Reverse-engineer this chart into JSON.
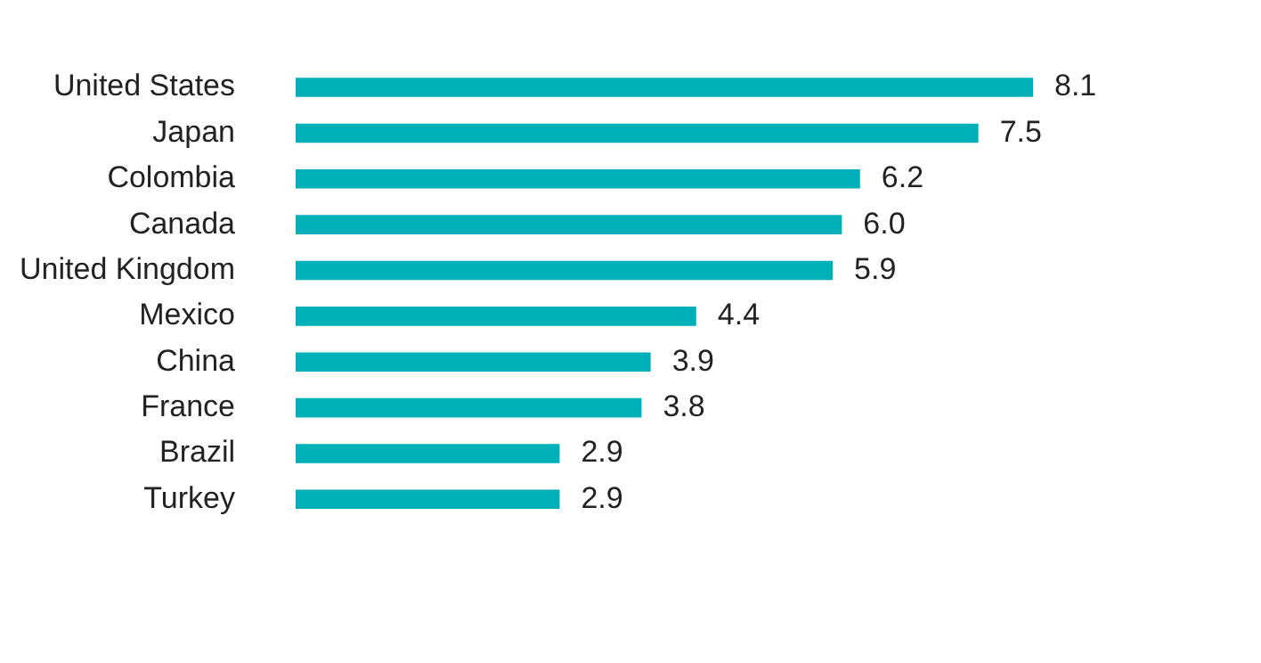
{
  "chart_data": {
    "type": "bar",
    "orientation": "horizontal",
    "categories": [
      "United States",
      "Japan",
      "Colombia",
      "Canada",
      "United Kingdom",
      "Mexico",
      "China",
      "France",
      "Brazil",
      "Turkey"
    ],
    "values": [
      8.1,
      7.5,
      6.2,
      6.0,
      5.9,
      4.4,
      3.9,
      3.8,
      2.9,
      2.9
    ],
    "value_labels": [
      "8.1",
      "7.5",
      "6.2",
      "6.0",
      "5.9",
      "4.4",
      "3.9",
      "3.8",
      "2.9",
      "2.9"
    ],
    "color": "#00b0b9",
    "tick_labels": "y"
  }
}
